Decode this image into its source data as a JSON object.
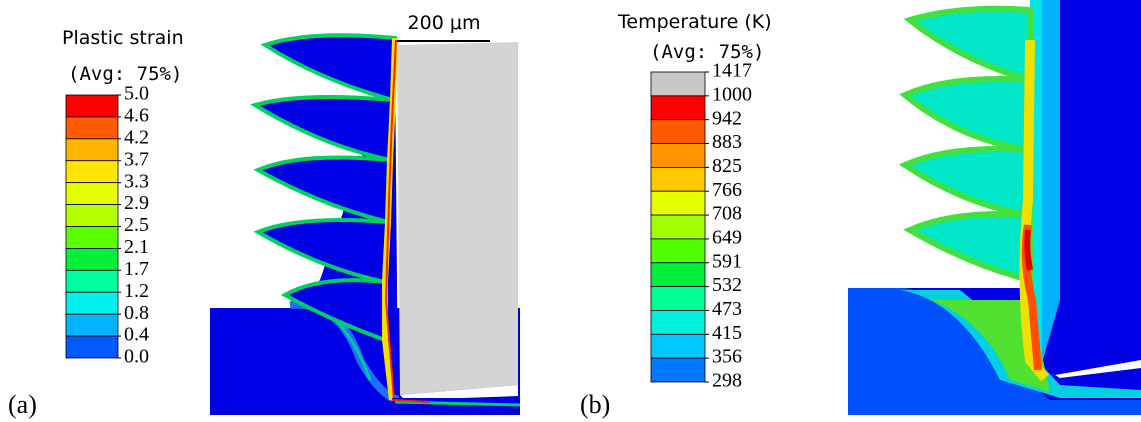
{
  "scale_bar": "200 μm",
  "panels": [
    {
      "label": "(a)",
      "title": "Plastic strain",
      "subtitle": "(Avg: 75%)",
      "levels": [
        "5.0",
        "4.6",
        "4.2",
        "3.7",
        "3.3",
        "2.9",
        "2.5",
        "2.1",
        "1.7",
        "1.2",
        "0.8",
        "0.4",
        "0.0"
      ],
      "colors": [
        "#ff0000",
        "#ff5a00",
        "#ffb400",
        "#ffe600",
        "#e6ff00",
        "#b4ff00",
        "#5aff00",
        "#00f03c",
        "#00ffa0",
        "#00f0f0",
        "#00b4ff",
        "#005aff",
        "#0000ff"
      ]
    },
    {
      "label": "(b)",
      "title": "Temperature (K)",
      "subtitle": "(Avg: 75%)",
      "levels": [
        "1417",
        "1000",
        "942",
        "883",
        "825",
        "766",
        "708",
        "649",
        "591",
        "532",
        "473",
        "415",
        "356",
        "298"
      ],
      "colors": [
        "#c8c8c8",
        "#ff0000",
        "#ff5a00",
        "#ff9600",
        "#ffc800",
        "#e6ff00",
        "#a0ff00",
        "#50ff00",
        "#00f03c",
        "#00ff96",
        "#00f0dc",
        "#00c8ff",
        "#0078ff",
        "#0000ff"
      ]
    }
  ]
}
